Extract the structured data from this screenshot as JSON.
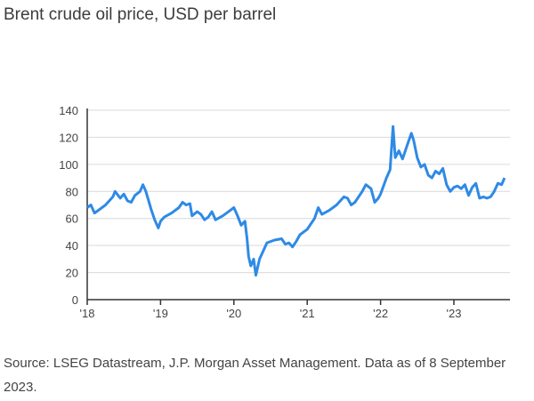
{
  "chart_data": {
    "type": "line",
    "title": "Brent crude oil price, USD per barrel",
    "xlabel": "",
    "ylabel": "",
    "xlim": [
      2018.0,
      2023.69
    ],
    "ylim": [
      0,
      140
    ],
    "grid": true,
    "yticks": [
      0,
      20,
      40,
      60,
      80,
      100,
      120,
      140
    ],
    "xticks": [
      {
        "value": 2018,
        "label": "'18"
      },
      {
        "value": 2019,
        "label": "'19"
      },
      {
        "value": 2020,
        "label": "'20"
      },
      {
        "value": 2021,
        "label": "'21"
      },
      {
        "value": 2022,
        "label": "'22"
      },
      {
        "value": 2023,
        "label": "'23"
      }
    ],
    "series": [
      {
        "name": "Brent crude",
        "color": "#2e8ae6",
        "x": [
          2018.0,
          2018.05,
          2018.1,
          2018.15,
          2018.25,
          2018.35,
          2018.38,
          2018.45,
          2018.5,
          2018.55,
          2018.6,
          2018.65,
          2018.72,
          2018.76,
          2018.8,
          2018.87,
          2018.92,
          2018.97,
          2019.0,
          2019.05,
          2019.15,
          2019.25,
          2019.3,
          2019.35,
          2019.4,
          2019.43,
          2019.5,
          2019.55,
          2019.6,
          2019.65,
          2019.7,
          2019.75,
          2019.85,
          2019.95,
          2020.0,
          2020.05,
          2020.1,
          2020.15,
          2020.18,
          2020.2,
          2020.23,
          2020.27,
          2020.3,
          2020.35,
          2020.4,
          2020.45,
          2020.55,
          2020.65,
          2020.7,
          2020.75,
          2020.8,
          2020.85,
          2020.9,
          2020.95,
          2021.0,
          2021.1,
          2021.15,
          2021.2,
          2021.3,
          2021.4,
          2021.5,
          2021.55,
          2021.6,
          2021.65,
          2021.75,
          2021.8,
          2021.87,
          2021.92,
          2021.97,
          2022.0,
          2022.08,
          2022.13,
          2022.17,
          2022.2,
          2022.25,
          2022.3,
          2022.35,
          2022.42,
          2022.45,
          2022.5,
          2022.55,
          2022.6,
          2022.65,
          2022.7,
          2022.75,
          2022.8,
          2022.85,
          2022.9,
          2022.95,
          2023.0,
          2023.05,
          2023.1,
          2023.15,
          2023.2,
          2023.25,
          2023.3,
          2023.35,
          2023.4,
          2023.45,
          2023.5,
          2023.55,
          2023.6,
          2023.65,
          2023.69
        ],
        "y": [
          68,
          70,
          64,
          66,
          70,
          76,
          80,
          75,
          78,
          73,
          72,
          77,
          80,
          85,
          80,
          67,
          59,
          53,
          58,
          61,
          64,
          68,
          72,
          70,
          71,
          62,
          65,
          63,
          59,
          61,
          65,
          59,
          62,
          66,
          68,
          62,
          55,
          58,
          45,
          32,
          25,
          30,
          18,
          30,
          36,
          42,
          44,
          45,
          41,
          42,
          39,
          43,
          48,
          50,
          52,
          60,
          68,
          63,
          66,
          70,
          76,
          75,
          70,
          72,
          80,
          85,
          82,
          72,
          75,
          78,
          90,
          96,
          128,
          105,
          110,
          104,
          112,
          123,
          118,
          105,
          98,
          100,
          92,
          90,
          95,
          93,
          97,
          85,
          80,
          83,
          84,
          82,
          85,
          77,
          83,
          86,
          75,
          76,
          75,
          76,
          80,
          86,
          85,
          90
        ]
      }
    ]
  },
  "source": "Source: LSEG Datastream, J.P. Morgan Asset Management. Data as of 8 September 2023."
}
